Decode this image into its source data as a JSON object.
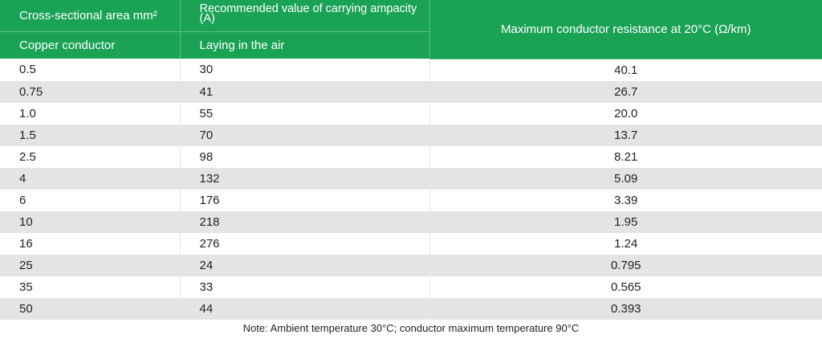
{
  "header": {
    "col1_top": "Cross-sectional area mm²",
    "col1_bottom": "Copper conductor",
    "col2_top": "Recommended value of carrying ampacity (A)",
    "col2_bottom": "Laying in the air",
    "col3": "Maximum conductor resistance at 20°C (Ω/km)"
  },
  "rows": [
    {
      "area": "0.5",
      "ampacity": "30",
      "resistance": "40.1"
    },
    {
      "area": "0.75",
      "ampacity": "41",
      "resistance": "26.7"
    },
    {
      "area": "1.0",
      "ampacity": "55",
      "resistance": "20.0"
    },
    {
      "area": "1.5",
      "ampacity": "70",
      "resistance": "13.7"
    },
    {
      "area": "2.5",
      "ampacity": "98",
      "resistance": "8.21"
    },
    {
      "area": "4",
      "ampacity": "132",
      "resistance": "5.09"
    },
    {
      "area": "6",
      "ampacity": "176",
      "resistance": "3.39"
    },
    {
      "area": "10",
      "ampacity": "218",
      "resistance": "1.95"
    },
    {
      "area": "16",
      "ampacity": "276",
      "resistance": "1.24"
    },
    {
      "area": "25",
      "ampacity": "24",
      "resistance": "0.795"
    },
    {
      "area": "35",
      "ampacity": "33",
      "resistance": "0.565"
    },
    {
      "area": "50",
      "ampacity": "44",
      "resistance": "0.393"
    }
  ],
  "note": "Note: Ambient temperature 30°C; conductor maximum temperature 90°C",
  "colors": {
    "header_green": "#1aa255",
    "stripe_gray": "#e4e4e4"
  }
}
